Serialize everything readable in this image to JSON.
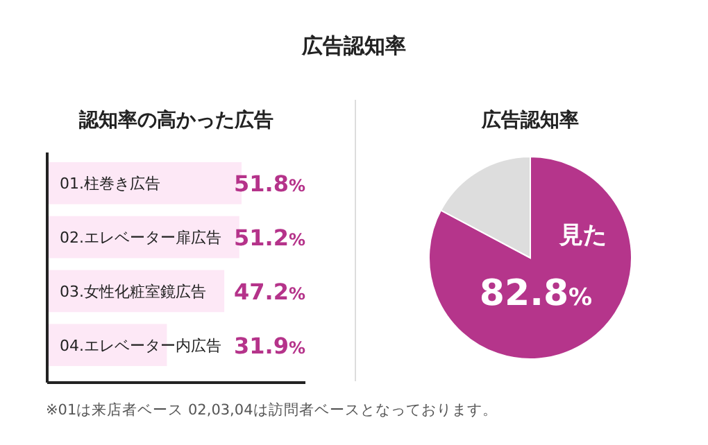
{
  "chart_data": [
    {
      "type": "other",
      "title": "広告認知率"
    },
    {
      "type": "bar",
      "orientation": "horizontal",
      "title": "認知率の高かった広告",
      "categories": [
        "01.柱巻き広告",
        "02.エレベーター扉広告",
        "03.女性化粧室鏡広告",
        "04.エレベーター内広告"
      ],
      "values": [
        51.8,
        51.2,
        47.2,
        31.9
      ],
      "value_labels": [
        "51.8%",
        "51.2%",
        "47.2%",
        "31.9%"
      ],
      "color": "#fde8f6",
      "annotations": [
        "※01は来店者ベース 02,03,04は訪問者ベースとなっております。"
      ]
    },
    {
      "type": "pie",
      "title": "広告認知率",
      "categories": [
        "見た",
        null
      ],
      "values": [
        82.8,
        17.2
      ],
      "colors": [
        "#b5358b",
        "#dddddd"
      ],
      "value_labels": [
        "82.8%",
        null
      ]
    }
  ]
}
